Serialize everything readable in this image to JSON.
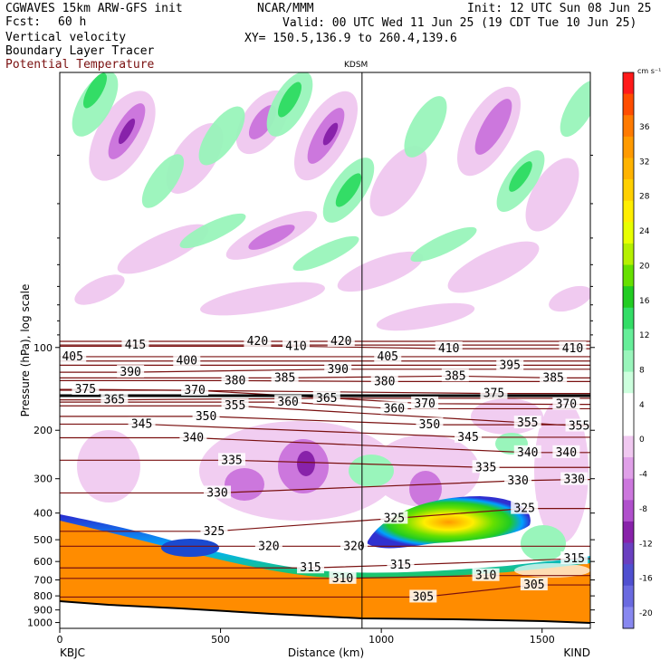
{
  "header": {
    "title_left": "CGWAVES 15km ARW-GFS init",
    "fcst_label": "Fcst:",
    "fcst_value": "60 h",
    "field1": "Vertical velocity",
    "field2": "Boundary Layer Tracer",
    "field3": "Potential Temperature",
    "center": "NCAR/MMM",
    "init": "Init: 12 UTC Sun 08 Jun 25",
    "valid": "Valid: 00 UTC Wed 11 Jun 25 (19 CDT Tue 10 Jun 25)",
    "xy": "XY= 150.5,136.9 to 260.4,139.6",
    "marker": "KDSM"
  },
  "chart_data": {
    "type": "heatmap",
    "xlabel": "Distance (km)",
    "ylabel": "Pressure (hPa), log scale",
    "x_ticks": [
      "0",
      "500",
      "1000",
      "1500"
    ],
    "xlim": [
      0,
      1650
    ],
    "y_ticks": [
      "100",
      "200",
      "300",
      "400",
      "500",
      "600",
      "700",
      "800",
      "900",
      "1000"
    ],
    "ylim": [
      1050,
      10
    ],
    "y_scale": "log",
    "end_labels": {
      "left": "KBJC",
      "right": "KIND"
    },
    "vertical_marker_km": 940,
    "colorbar": {
      "unit": "cm s⁻¹",
      "labels": [
        "36",
        "32",
        "28",
        "24",
        "20",
        "16",
        "12",
        "8",
        "4",
        "0",
        "-4",
        "-8",
        "-12",
        "-16",
        "-20"
      ],
      "colors": [
        "#ff1a1a",
        "#ff4d00",
        "#ff7a00",
        "#ff9a00",
        "#ffb300",
        "#ffd000",
        "#ffee00",
        "#e8ff00",
        "#b5f000",
        "#66e000",
        "#22cc22",
        "#33dd66",
        "#66ee99",
        "#99f5bb",
        "#ccffdd",
        "#ffffff",
        "#ffffff",
        "#f0c8f0",
        "#e0a0e8",
        "#cc77dd",
        "#b050cc",
        "#8822aa",
        "#6a40c0",
        "#5050d0",
        "#6a6ae0",
        "#8888f0"
      ]
    },
    "theta_labels": [
      {
        "v": "405",
        "km": 40,
        "p": 108
      },
      {
        "v": "415",
        "km": 235,
        "p": 98
      },
      {
        "v": "420",
        "km": 615,
        "p": 95
      },
      {
        "v": "410",
        "km": 735,
        "p": 99
      },
      {
        "v": "420",
        "km": 875,
        "p": 95
      },
      {
        "v": "405",
        "km": 1020,
        "p": 108
      },
      {
        "v": "410",
        "km": 1210,
        "p": 101
      },
      {
        "v": "410",
        "km": 1595,
        "p": 101
      },
      {
        "v": "400",
        "km": 395,
        "p": 112
      },
      {
        "v": "390",
        "km": 220,
        "p": 123
      },
      {
        "v": "390",
        "km": 865,
        "p": 120
      },
      {
        "v": "395",
        "km": 1400,
        "p": 116
      },
      {
        "v": "380",
        "km": 545,
        "p": 132
      },
      {
        "v": "385",
        "km": 700,
        "p": 129
      },
      {
        "v": "380",
        "km": 1010,
        "p": 133
      },
      {
        "v": "385",
        "km": 1230,
        "p": 127
      },
      {
        "v": "385",
        "km": 1535,
        "p": 129
      },
      {
        "v": "375",
        "km": 80,
        "p": 142
      },
      {
        "v": "370",
        "km": 420,
        "p": 143
      },
      {
        "v": "375",
        "km": 1350,
        "p": 147
      },
      {
        "v": "370",
        "km": 1135,
        "p": 160
      },
      {
        "v": "370",
        "km": 1575,
        "p": 161
      },
      {
        "v": "365",
        "km": 170,
        "p": 155
      },
      {
        "v": "360",
        "km": 710,
        "p": 158
      },
      {
        "v": "365",
        "km": 830,
        "p": 153
      },
      {
        "v": "360",
        "km": 1040,
        "p": 167
      },
      {
        "v": "355",
        "km": 545,
        "p": 163
      },
      {
        "v": "350",
        "km": 455,
        "p": 178
      },
      {
        "v": "350",
        "km": 1150,
        "p": 191
      },
      {
        "v": "355",
        "km": 1455,
        "p": 188
      },
      {
        "v": "355",
        "km": 1615,
        "p": 193
      },
      {
        "v": "345",
        "km": 255,
        "p": 190
      },
      {
        "v": "345",
        "km": 1270,
        "p": 212
      },
      {
        "v": "340",
        "km": 415,
        "p": 213
      },
      {
        "v": "340",
        "km": 1455,
        "p": 241
      },
      {
        "v": "340",
        "km": 1575,
        "p": 241
      },
      {
        "v": "335",
        "km": 535,
        "p": 257
      },
      {
        "v": "335",
        "km": 1325,
        "p": 273
      },
      {
        "v": "330",
        "km": 490,
        "p": 338
      },
      {
        "v": "330",
        "km": 1425,
        "p": 305
      },
      {
        "v": "330",
        "km": 1600,
        "p": 302
      },
      {
        "v": "325",
        "km": 480,
        "p": 466
      },
      {
        "v": "325",
        "km": 1040,
        "p": 418
      },
      {
        "v": "325",
        "km": 1445,
        "p": 385
      },
      {
        "v": "320",
        "km": 650,
        "p": 528
      },
      {
        "v": "320",
        "km": 915,
        "p": 528
      },
      {
        "v": "315",
        "km": 780,
        "p": 633
      },
      {
        "v": "315",
        "km": 1060,
        "p": 618
      },
      {
        "v": "315",
        "km": 1600,
        "p": 586
      },
      {
        "v": "310",
        "km": 880,
        "p": 691
      },
      {
        "v": "310",
        "km": 1325,
        "p": 675
      },
      {
        "v": "305",
        "km": 1130,
        "p": 808
      },
      {
        "v": "305",
        "km": 1475,
        "p": 730
      }
    ]
  }
}
